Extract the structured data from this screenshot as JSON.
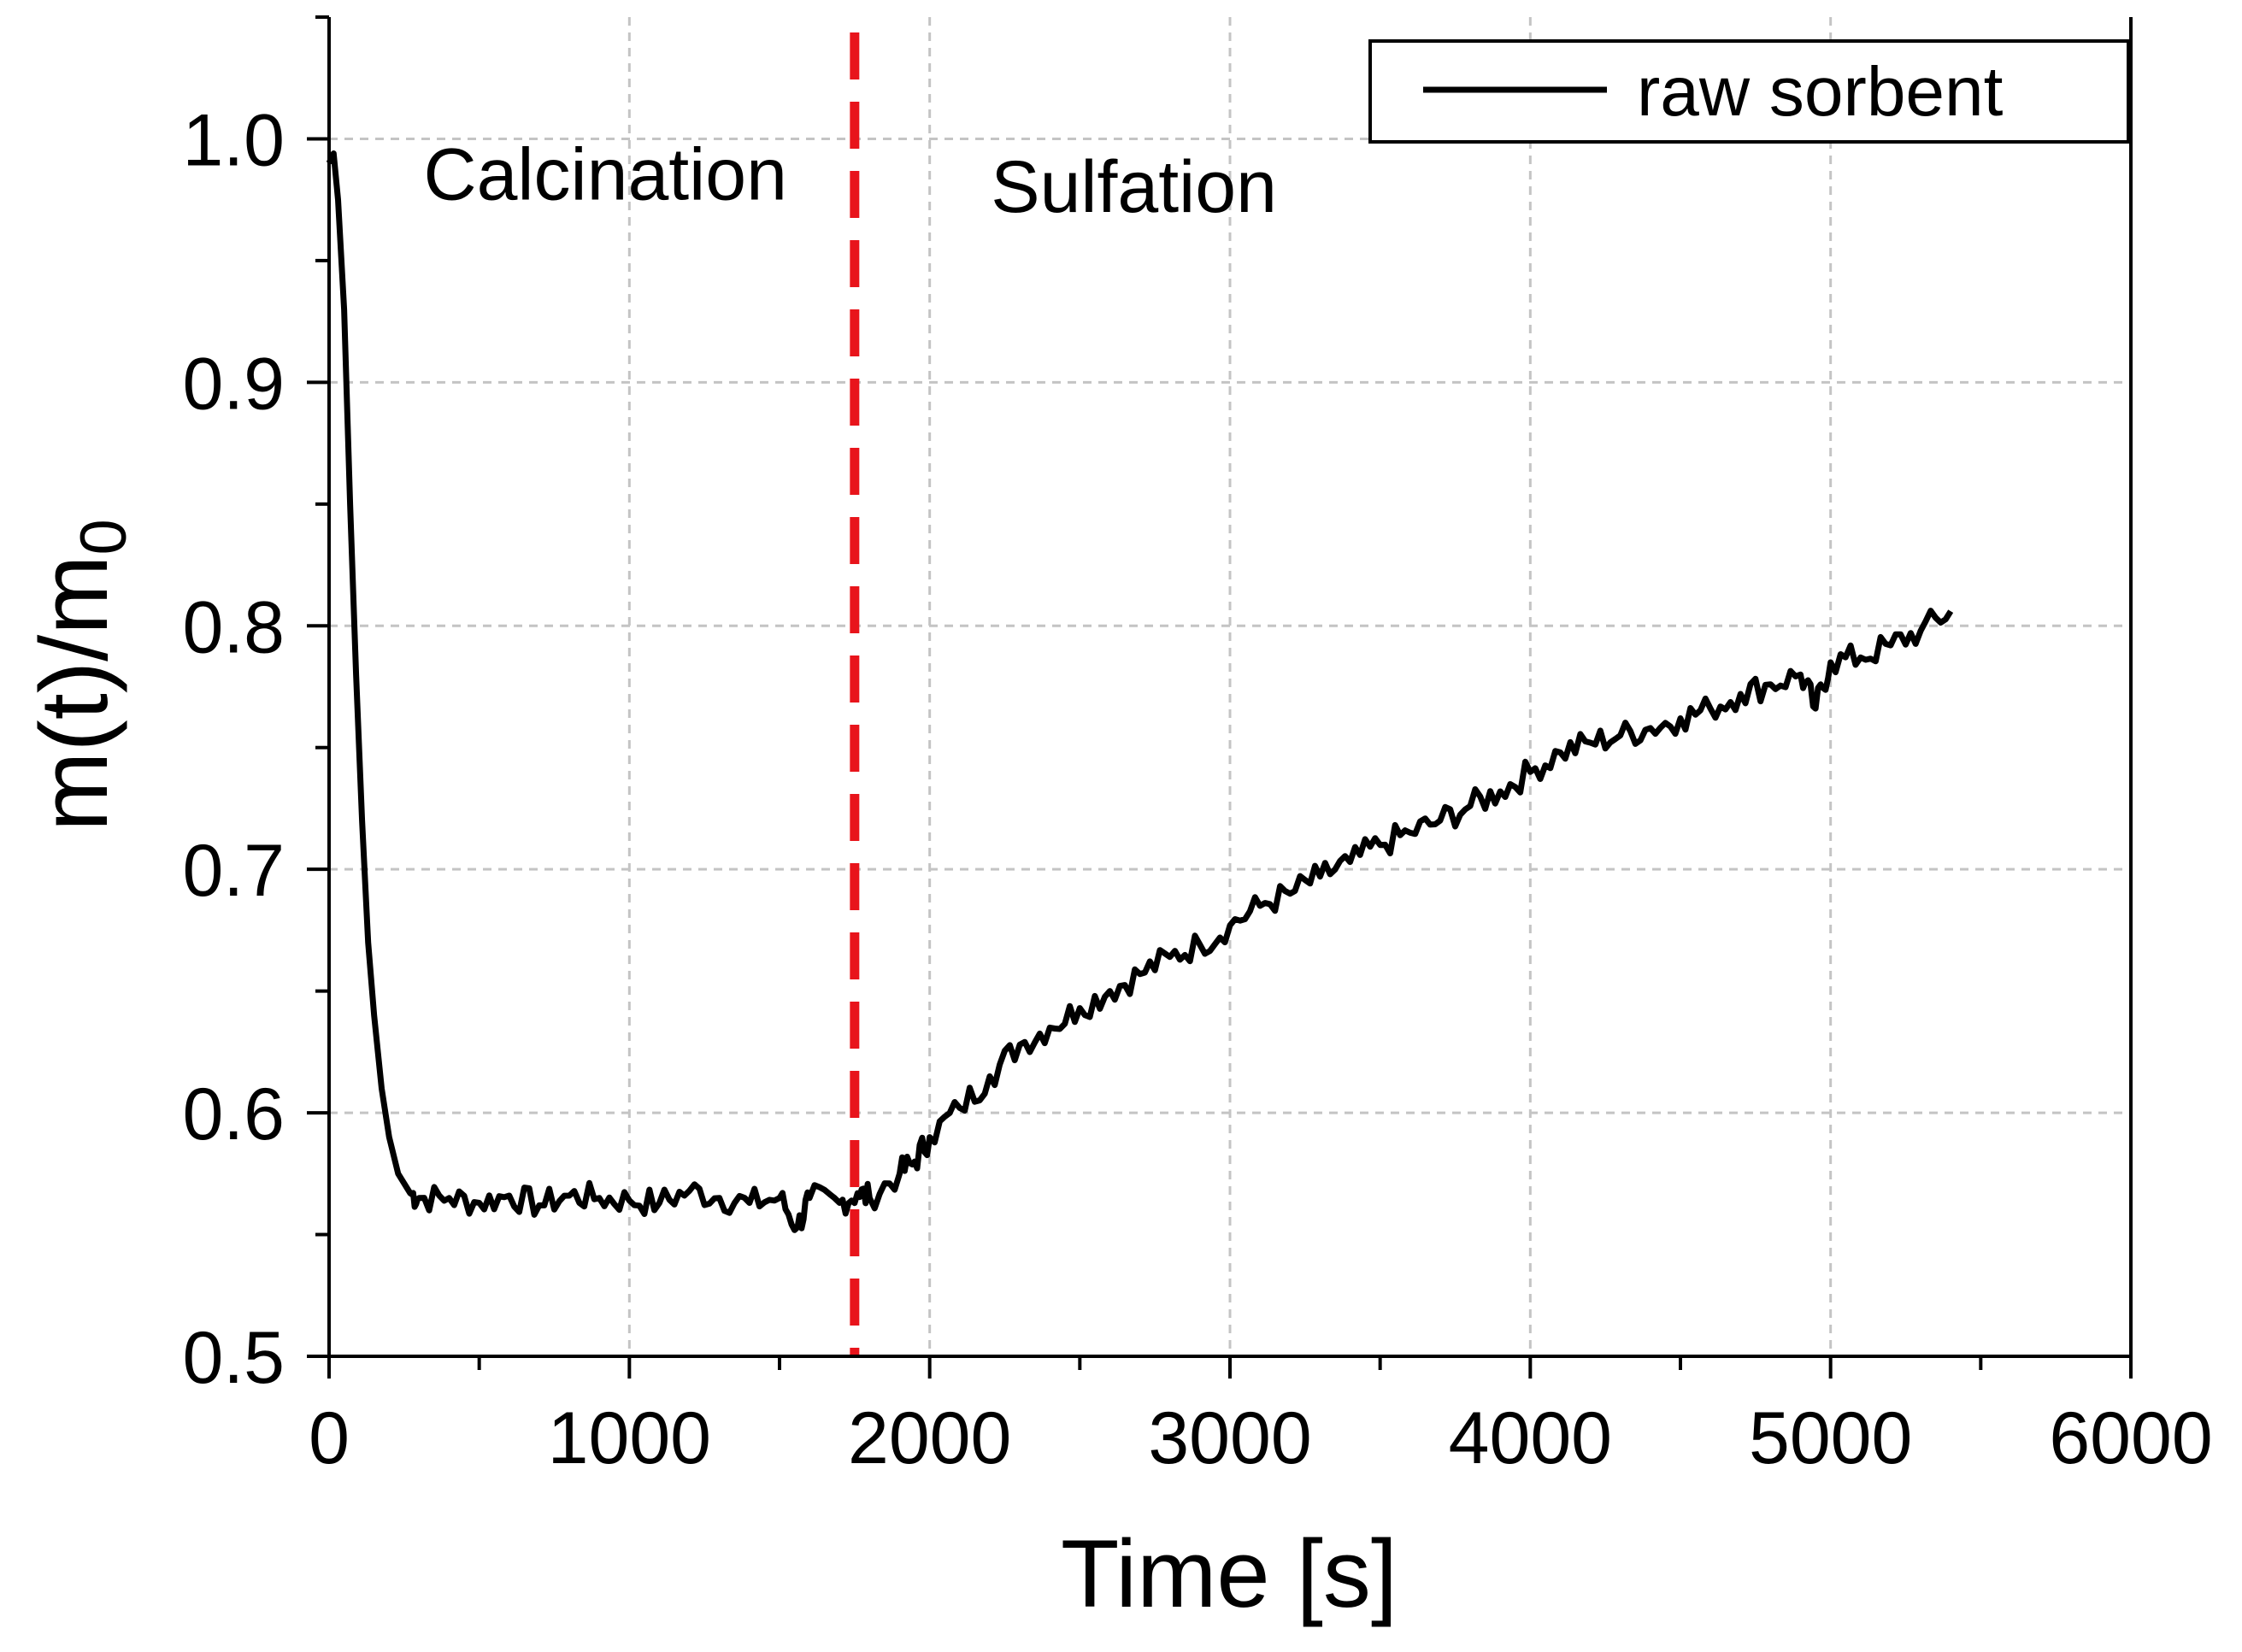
{
  "chart_data": {
    "type": "line",
    "title": "",
    "xlabel": "Time [s]",
    "ylabel_main": "m(t)/m",
    "ylabel_subscript": "0",
    "xlim": [
      0,
      6000
    ],
    "ylim": [
      0.5,
      1.05
    ],
    "xticks": [
      0,
      1000,
      2000,
      3000,
      4000,
      5000,
      6000
    ],
    "xtick_labels": [
      "0",
      "1000",
      "2000",
      "3000",
      "4000",
      "5000",
      "6000"
    ],
    "yticks": [
      0.5,
      0.6,
      0.7,
      0.8,
      0.9,
      1.0
    ],
    "ytick_labels": [
      "0.5",
      "0.6",
      "0.7",
      "0.8",
      "0.9",
      "1.0"
    ],
    "grid": true,
    "legend_position": "top-right",
    "series": [
      {
        "name": "raw sorbent",
        "color": "#000000",
        "x": [
          0,
          15,
          30,
          50,
          70,
          90,
          110,
          130,
          150,
          175,
          200,
          230,
          270,
          300,
          400,
          500,
          600,
          700,
          800,
          900,
          1000,
          1100,
          1200,
          1300,
          1400,
          1500,
          1560,
          1600,
          1700,
          1760,
          1800,
          1900,
          1950,
          2000,
          2100,
          2200,
          2300,
          2400,
          2500,
          2600,
          2700,
          2800,
          2900,
          3000,
          3100,
          3200,
          3300,
          3400,
          3500,
          3600,
          3700,
          3800,
          3900,
          4000,
          4100,
          4200,
          4300,
          4400,
          4500,
          4600,
          4700,
          4800,
          4900,
          4950,
          5000,
          5100,
          5200,
          5300,
          5400
        ],
        "y": [
          0.99,
          0.994,
          0.975,
          0.93,
          0.85,
          0.78,
          0.72,
          0.67,
          0.64,
          0.61,
          0.59,
          0.575,
          0.567,
          0.565,
          0.565,
          0.563,
          0.566,
          0.562,
          0.566,
          0.565,
          0.564,
          0.563,
          0.568,
          0.565,
          0.563,
          0.565,
          0.553,
          0.565,
          0.563,
          0.567,
          0.565,
          0.575,
          0.58,
          0.59,
          0.602,
          0.615,
          0.628,
          0.635,
          0.643,
          0.65,
          0.657,
          0.664,
          0.669,
          0.677,
          0.685,
          0.69,
          0.697,
          0.703,
          0.71,
          0.715,
          0.72,
          0.726,
          0.732,
          0.74,
          0.748,
          0.752,
          0.755,
          0.758,
          0.762,
          0.766,
          0.772,
          0.776,
          0.78,
          0.766,
          0.785,
          0.787,
          0.792,
          0.798,
          0.806
        ]
      }
    ],
    "annotations": [
      {
        "text": "Calcination",
        "x": 920,
        "y": 0.975
      },
      {
        "text": "Sulfation",
        "x": 2680,
        "y": 0.97
      }
    ],
    "divider": {
      "x": 1750,
      "color": "#e8141b",
      "style": "dashed"
    }
  }
}
